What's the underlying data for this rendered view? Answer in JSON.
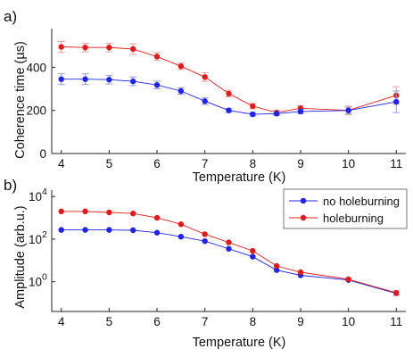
{
  "colors": {
    "no_holeburning": "#1f24e6",
    "holeburning": "#e01b1b",
    "errorbar_no": "#9a9ad8",
    "errorbar_hb": "#e8a0a0",
    "axis": "#222222"
  },
  "chart_data": [
    {
      "type": "line",
      "panel_label": "a)",
      "xlabel": "Temperature (K)",
      "ylabel": "Coherence time (µs)",
      "xlim": [
        3.8,
        11.2
      ],
      "ylim": [
        0,
        580
      ],
      "xticks": [
        4,
        5,
        6,
        7,
        8,
        9,
        10,
        11
      ],
      "xtick_labels": [
        "4",
        "5",
        "6",
        "7",
        "8",
        "9",
        "10",
        "11"
      ],
      "yticks": [
        0,
        200,
        400
      ],
      "ytick_labels": [
        "0",
        "200",
        "400"
      ],
      "grid": false,
      "x": [
        4,
        4.5,
        5,
        5.5,
        6,
        6.5,
        7,
        7.5,
        8,
        8.5,
        9,
        10,
        11
      ],
      "series": [
        {
          "name": "holeburning",
          "color_key": "holeburning",
          "values": [
            495,
            492,
            492,
            485,
            450,
            405,
            355,
            278,
            220,
            190,
            210,
            200,
            270
          ],
          "errors": [
            25,
            20,
            20,
            25,
            18,
            15,
            20,
            15,
            12,
            10,
            12,
            20,
            40
          ]
        },
        {
          "name": "no holeburning",
          "color_key": "no_holeburning",
          "values": [
            345,
            345,
            343,
            335,
            318,
            290,
            243,
            200,
            182,
            185,
            195,
            200,
            240
          ],
          "errors": [
            25,
            25,
            20,
            20,
            18,
            15,
            15,
            10,
            8,
            8,
            10,
            15,
            50
          ]
        }
      ]
    },
    {
      "type": "line",
      "panel_label": "b)",
      "xlabel": "Temperature (K)",
      "ylabel": "Amplitude (arb.u.)",
      "yscale": "log",
      "xlim": [
        3.8,
        11.2
      ],
      "ylim": [
        0.04,
        20000
      ],
      "xticks": [
        4,
        5,
        6,
        7,
        8,
        9,
        10,
        11
      ],
      "xtick_labels": [
        "4",
        "5",
        "6",
        "7",
        "8",
        "9",
        "10",
        "11"
      ],
      "yticks": [
        {
          "value": 1,
          "base": "10",
          "exp": "0"
        },
        {
          "value": 100,
          "base": "10",
          "exp": "2"
        },
        {
          "value": 10000,
          "base": "10",
          "exp": "4"
        }
      ],
      "grid": false,
      "legend_position": "top-right",
      "legend": [
        "no holeburning",
        "holeburning"
      ],
      "x": [
        4,
        4.5,
        5,
        5.5,
        6,
        6.5,
        7,
        7.5,
        8,
        8.5,
        9,
        10,
        11
      ],
      "series": [
        {
          "name": "no holeburning",
          "color_key": "no_holeburning",
          "values": [
            270,
            270,
            270,
            260,
            200,
            130,
            80,
            35,
            15,
            3.5,
            2.0,
            1.2,
            0.28
          ],
          "errors": null
        },
        {
          "name": "holeburning",
          "color_key": "holeburning",
          "values": [
            2000,
            2000,
            1800,
            1600,
            1000,
            500,
            170,
            70,
            28,
            5.5,
            2.8,
            1.3,
            0.3
          ],
          "errors": [
            0,
            0,
            0,
            0,
            0,
            0,
            0,
            0,
            0,
            0,
            0,
            0.2,
            0.08
          ]
        }
      ]
    }
  ]
}
